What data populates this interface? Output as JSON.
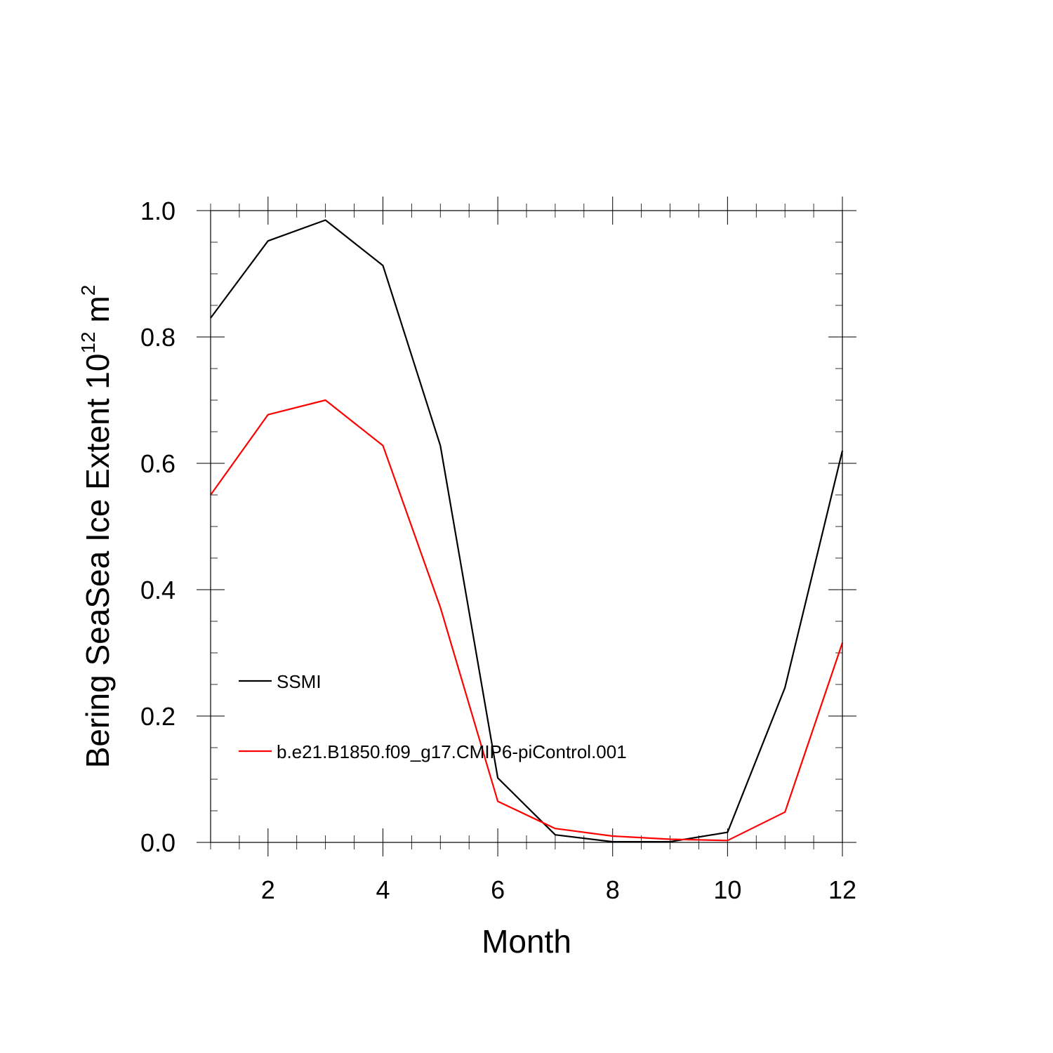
{
  "chart_data": {
    "type": "line",
    "title": "",
    "xlabel": "Month",
    "ylabel_main": "Bering SeaSea Ice Extent 10",
    "ylabel_sup": "12",
    "ylabel_unit": " m",
    "ylabel_unit_sup": "2",
    "xlim": [
      1,
      12
    ],
    "ylim": [
      0,
      1
    ],
    "xticks": [
      2,
      4,
      6,
      8,
      10,
      12
    ],
    "xtick_labels": [
      "2",
      "4",
      "6",
      "8",
      "10",
      "12"
    ],
    "yticks": [
      0,
      0.2,
      0.4,
      0.6,
      0.8,
      1.0
    ],
    "ytick_labels": [
      "0.0",
      "0.2",
      "0.4",
      "0.6",
      "0.8",
      "1.0"
    ],
    "x": [
      1,
      2,
      3,
      4,
      5,
      6,
      7,
      8,
      9,
      10,
      11,
      12
    ],
    "series": [
      {
        "name": "SSMI",
        "color": "#000000",
        "values": [
          0.83,
          0.952,
          0.985,
          0.913,
          0.628,
          0.102,
          0.012,
          0.001,
          0.001,
          0.016,
          0.245,
          0.62
        ]
      },
      {
        "name": "b.e21.B1850.f09_g17.CMIP6-piControl.001",
        "color": "#ff0000",
        "values": [
          0.55,
          0.677,
          0.7,
          0.628,
          0.372,
          0.065,
          0.022,
          0.01,
          0.005,
          0.003,
          0.048,
          0.316
        ]
      }
    ],
    "legend_placement": "lower-left inside",
    "grid": false
  }
}
